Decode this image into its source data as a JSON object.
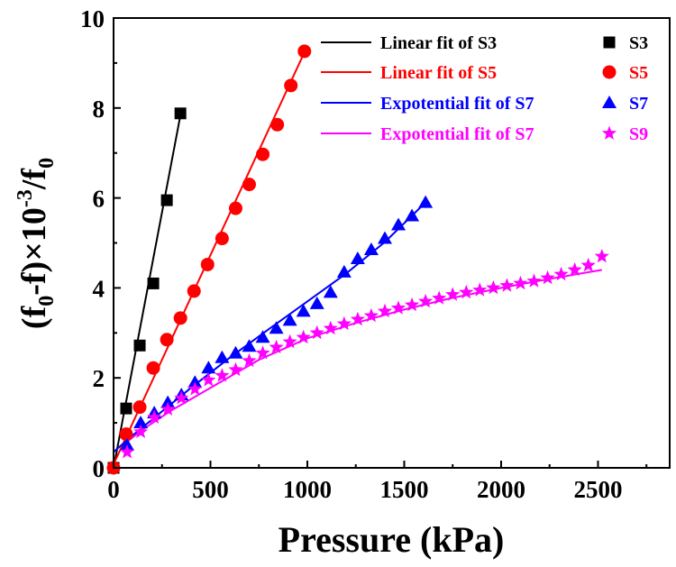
{
  "chart_data": {
    "type": "scatter",
    "title": "",
    "xlabel": "Pressure (kPa)",
    "ylabel_parts": [
      "(f",
      "0",
      "-f)×10",
      "-3",
      "/f",
      "0"
    ],
    "xlim": [
      0,
      2870
    ],
    "ylim": [
      0,
      10
    ],
    "xticks": [
      0,
      500,
      1000,
      1500,
      2000,
      2500
    ],
    "yticks": [
      0,
      2,
      4,
      6,
      8,
      10
    ],
    "grid": false,
    "legend_position": "top-right",
    "series": [
      {
        "name": "S3",
        "marker": "square",
        "color": "#000000",
        "x": [
          0,
          65,
          135,
          205,
          275,
          345
        ],
        "y": [
          0,
          1.32,
          2.72,
          4.1,
          5.95,
          7.88
        ]
      },
      {
        "name": "S5",
        "marker": "circle",
        "color": "#ff0000",
        "x": [
          0,
          65,
          135,
          205,
          275,
          345,
          415,
          485,
          560,
          630,
          700,
          770,
          845,
          915,
          985
        ],
        "y": [
          0,
          0.75,
          1.35,
          2.22,
          2.85,
          3.33,
          3.93,
          4.52,
          5.1,
          5.77,
          6.3,
          6.97,
          7.63,
          8.5,
          9.26
        ]
      },
      {
        "name": "S7",
        "marker": "triangle",
        "color": "#0000ff",
        "x": [
          70,
          140,
          210,
          280,
          350,
          420,
          490,
          560,
          630,
          700,
          770,
          840,
          910,
          980,
          1050,
          1120,
          1190,
          1260,
          1330,
          1400,
          1470,
          1540,
          1610
        ],
        "y": [
          0.5,
          1.0,
          1.22,
          1.45,
          1.62,
          1.9,
          2.22,
          2.45,
          2.55,
          2.7,
          2.9,
          3.1,
          3.28,
          3.48,
          3.65,
          3.9,
          4.35,
          4.65,
          4.85,
          5.1,
          5.4,
          5.6,
          5.9
        ]
      },
      {
        "name": "S9",
        "marker": "star",
        "color": "#ff00ff",
        "x": [
          70,
          140,
          210,
          280,
          350,
          420,
          490,
          560,
          630,
          700,
          770,
          840,
          910,
          980,
          1050,
          1120,
          1190,
          1260,
          1330,
          1400,
          1470,
          1540,
          1610,
          1680,
          1750,
          1820,
          1890,
          1960,
          2030,
          2100,
          2170,
          2240,
          2310,
          2380,
          2450,
          2520
        ],
        "y": [
          0.35,
          0.8,
          1.12,
          1.3,
          1.55,
          1.75,
          1.95,
          2.05,
          2.18,
          2.38,
          2.55,
          2.68,
          2.8,
          2.9,
          3.0,
          3.1,
          3.2,
          3.3,
          3.38,
          3.48,
          3.55,
          3.62,
          3.7,
          3.77,
          3.85,
          3.9,
          3.95,
          4.0,
          4.05,
          4.1,
          4.15,
          4.22,
          4.3,
          4.4,
          4.5,
          4.7
        ]
      }
    ],
    "fits": [
      {
        "name": "Linear fit of S3",
        "kind": "linear",
        "color": "#000000",
        "slope": 0.02273,
        "intercept": 0,
        "xrange": [
          0,
          345
        ]
      },
      {
        "name": "Linear fit of S5",
        "kind": "linear",
        "color": "#ff0000",
        "slope": 0.0093,
        "intercept": 0.08,
        "xrange": [
          0,
          985
        ]
      },
      {
        "name": "Expotential fit of S7",
        "kind": "curve",
        "color": "#0000ff",
        "x": [
          0,
          70,
          200,
          400,
          600,
          800,
          1000,
          1200,
          1400,
          1610
        ],
        "y": [
          0.35,
          0.62,
          1.08,
          1.78,
          2.45,
          3.08,
          3.7,
          4.32,
          5.02,
          5.9
        ]
      },
      {
        "name": "Expotential fit of S7",
        "kind": "curve",
        "color": "#ff00ff",
        "x": [
          70,
          150,
          300,
          500,
          750,
          1000,
          1250,
          1500,
          1750,
          2000,
          2250,
          2520
        ],
        "y": [
          0.58,
          0.85,
          1.28,
          1.78,
          2.4,
          2.88,
          3.22,
          3.52,
          3.78,
          4.0,
          4.2,
          4.4
        ]
      }
    ]
  }
}
